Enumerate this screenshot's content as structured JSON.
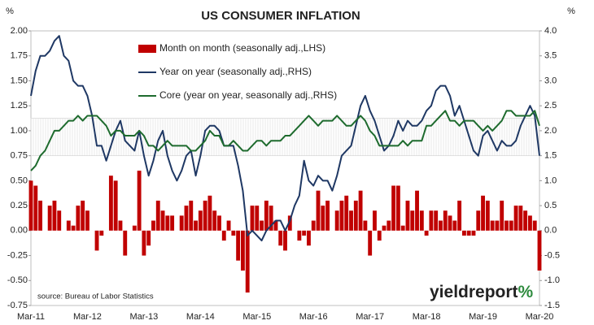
{
  "chart_data": {
    "type": "bar_line",
    "title": "US CONSUMER INFLATION",
    "ylabel": "%",
    "y2label": "%",
    "source": "source: Bureau of Labor Statistics",
    "logo": {
      "text": "yieldreport",
      "mark": "%"
    },
    "categories": [
      "Mar-11",
      null,
      null,
      null,
      null,
      null,
      null,
      null,
      null,
      null,
      null,
      null,
      "Mar-12",
      null,
      null,
      null,
      null,
      null,
      null,
      null,
      null,
      null,
      null,
      null,
      "Mar-13",
      null,
      null,
      null,
      null,
      null,
      null,
      null,
      null,
      null,
      null,
      null,
      "Mar-14",
      null,
      null,
      null,
      null,
      null,
      null,
      null,
      null,
      null,
      null,
      null,
      "Mar-15",
      null,
      null,
      null,
      null,
      null,
      null,
      null,
      null,
      null,
      null,
      null,
      "Mar-16",
      null,
      null,
      null,
      null,
      null,
      null,
      null,
      null,
      null,
      null,
      null,
      "Mar-17",
      null,
      null,
      null,
      null,
      null,
      null,
      null,
      null,
      null,
      null,
      null,
      "Mar-18",
      null,
      null,
      null,
      null,
      null,
      null,
      null,
      null,
      null,
      null,
      null,
      "Mar-19",
      null,
      null,
      null,
      null,
      null,
      null,
      null,
      null,
      null,
      null,
      null,
      "Mar-20"
    ],
    "series": [
      {
        "name": "Month on month (seasonally adj.,LHS)",
        "kind": "bar",
        "axis": "y",
        "color": "#c00000",
        "values": [
          0.5,
          0.45,
          0.3,
          0,
          0.25,
          0.3,
          0.2,
          0,
          0.1,
          0.05,
          0.25,
          0.3,
          0.2,
          0,
          -0.2,
          -0.05,
          0,
          0.55,
          0.5,
          0.1,
          -0.25,
          0,
          0.05,
          0.6,
          -0.25,
          -0.15,
          0.1,
          0.3,
          0.2,
          0.15,
          0.15,
          0,
          0.15,
          0.25,
          0.3,
          0.1,
          0.2,
          0.3,
          0.35,
          0.2,
          0.15,
          -0.1,
          0.1,
          -0.05,
          -0.3,
          -0.4,
          -0.62,
          0.25,
          0.25,
          0.1,
          0.3,
          0.25,
          0.1,
          -0.15,
          -0.2,
          0.15,
          0,
          -0.1,
          -0.05,
          -0.15,
          0.1,
          0.4,
          0.25,
          0.3,
          0,
          0.2,
          0.3,
          0.35,
          0.2,
          0.3,
          0.4,
          0.1,
          -0.25,
          0.2,
          -0.1,
          0.05,
          0.1,
          0.45,
          0.45,
          0.05,
          0.3,
          0.2,
          0.4,
          0.2,
          -0.05,
          0.2,
          0.2,
          0.1,
          0.2,
          0.15,
          0.1,
          0.3,
          -0.05,
          -0.05,
          -0.05,
          0.2,
          0.35,
          0.3,
          0.1,
          0.1,
          0.3,
          0.1,
          0.1,
          0.25,
          0.25,
          0.2,
          0.15,
          0.1,
          -0.4
        ]
      },
      {
        "name": "Year on year (seasonally adj.,RHS)",
        "kind": "line",
        "axis": "y2",
        "color": "#1f3864",
        "values": [
          2.7,
          3.2,
          3.5,
          3.5,
          3.6,
          3.8,
          3.9,
          3.5,
          3.4,
          3.0,
          2.9,
          2.9,
          2.7,
          2.3,
          1.7,
          1.7,
          1.4,
          1.7,
          2.0,
          2.2,
          1.8,
          1.7,
          1.6,
          2.0,
          1.5,
          1.1,
          1.4,
          1.8,
          2.0,
          1.5,
          1.2,
          1.0,
          1.2,
          1.5,
          1.6,
          1.1,
          1.5,
          2.0,
          2.1,
          2.1,
          2.0,
          1.7,
          1.7,
          1.7,
          1.3,
          0.8,
          -0.1,
          0.0,
          -0.1,
          -0.2,
          0.0,
          0.1,
          0.2,
          0.2,
          0.0,
          0.2,
          0.5,
          0.7,
          1.4,
          1.0,
          0.9,
          1.1,
          1.0,
          1.0,
          0.8,
          1.1,
          1.5,
          1.6,
          1.7,
          2.1,
          2.5,
          2.7,
          2.4,
          2.2,
          1.9,
          1.6,
          1.7,
          1.9,
          2.2,
          2.0,
          2.2,
          2.1,
          2.1,
          2.2,
          2.4,
          2.5,
          2.8,
          2.9,
          2.9,
          2.7,
          2.3,
          2.5,
          2.2,
          1.9,
          1.6,
          1.5,
          1.9,
          2.0,
          1.8,
          1.6,
          1.8,
          1.7,
          1.7,
          1.8,
          2.1,
          2.3,
          2.5,
          2.3,
          1.5
        ]
      },
      {
        "name": "Core (year on year, seasonally adj.,RHS)",
        "kind": "line",
        "axis": "y2",
        "color": "#1e6b2e",
        "values": [
          1.2,
          1.3,
          1.5,
          1.6,
          1.8,
          2.0,
          2.0,
          2.1,
          2.2,
          2.2,
          2.3,
          2.2,
          2.3,
          2.3,
          2.3,
          2.2,
          2.1,
          1.9,
          2.0,
          2.0,
          1.9,
          1.9,
          1.9,
          2.0,
          1.9,
          1.7,
          1.7,
          1.6,
          1.7,
          1.8,
          1.7,
          1.7,
          1.7,
          1.7,
          1.6,
          1.6,
          1.7,
          1.8,
          2.0,
          1.9,
          1.9,
          1.7,
          1.7,
          1.8,
          1.7,
          1.6,
          1.6,
          1.7,
          1.8,
          1.8,
          1.7,
          1.8,
          1.8,
          1.8,
          1.9,
          1.9,
          2.0,
          2.1,
          2.2,
          2.3,
          2.2,
          2.1,
          2.2,
          2.2,
          2.2,
          2.3,
          2.2,
          2.1,
          2.1,
          2.2,
          2.3,
          2.2,
          2.0,
          1.9,
          1.7,
          1.7,
          1.7,
          1.7,
          1.7,
          1.8,
          1.7,
          1.8,
          1.8,
          1.8,
          2.1,
          2.1,
          2.2,
          2.3,
          2.4,
          2.2,
          2.2,
          2.1,
          2.2,
          2.2,
          2.2,
          2.1,
          2.0,
          2.1,
          2.0,
          2.1,
          2.2,
          2.4,
          2.4,
          2.3,
          2.3,
          2.3,
          2.3,
          2.4,
          2.1
        ]
      }
    ],
    "target_band": [
      1.5,
      2.25
    ],
    "ylim": [
      -0.75,
      2.0
    ],
    "yticks": [
      {
        "value": 2,
        "label": "2.00"
      },
      1.75,
      {
        "value": 1.5,
        "label": "1.50"
      },
      1.25,
      {
        "value": 1,
        "label": "1.00"
      },
      0.75,
      {
        "value": 0.5,
        "label": "0.50"
      },
      0.25,
      {
        "value": 0,
        "label": "0.00"
      },
      -0.25,
      {
        "value": -0.5,
        "label": "-0.50"
      },
      -0.75
    ],
    "y2lim": [
      -1.5,
      4.0
    ],
    "y2ticks": [
      {
        "value": 4,
        "label": "4.0"
      },
      3.5,
      {
        "value": 3,
        "label": "3.0"
      },
      2.5,
      {
        "value": 2,
        "label": "2.0"
      },
      1.5,
      {
        "value": 1,
        "label": "1.0"
      },
      0.5,
      {
        "value": 0,
        "label": "0.0"
      },
      -0.5,
      {
        "value": -1,
        "label": "-1.0"
      },
      -1.5
    ]
  }
}
